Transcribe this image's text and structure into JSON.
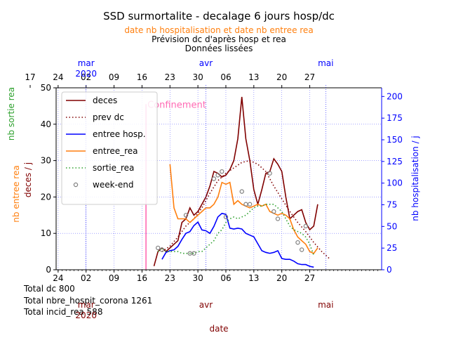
{
  "chart_data": {
    "type": "line",
    "title": "SSD surmortalite -  decalage 6 jours hosp/dc",
    "subtitle_orange": "date nb hospitalisation et date nb entree rea",
    "subtitle_lines": [
      "Prévision dc d'après hosp et rea",
      "Données lissées"
    ],
    "confinement_label": "Confinement",
    "xlabel": "date",
    "ylabel_left_main": "deces / j",
    "ylabel_left_orange": "nb entree rea",
    "ylabel_left_green": "nb sortie rea",
    "ylabel_right": "nb hospitalisation / j",
    "ylim_left": [
      0,
      50
    ],
    "ylim_right": [
      0,
      210
    ],
    "xlim": [
      -6.5,
      75
    ],
    "confinement_day": 16,
    "bottom_ticks": [
      "24",
      "02",
      "09",
      "16",
      "23",
      "30",
      "06",
      "13",
      "20",
      "27"
    ],
    "bottom_tick_days": [
      -6,
      1,
      8,
      15,
      22,
      29,
      36,
      43,
      50,
      57
    ],
    "bottom_months": [
      {
        "label": "mar\n2020",
        "day": 1
      },
      {
        "label": "avr",
        "day": 31
      },
      {
        "label": "mai",
        "day": 61
      }
    ],
    "top_ticks": [
      "17",
      "24",
      "02",
      "09",
      "16",
      "23",
      "30",
      "06",
      "13",
      "20",
      "27"
    ],
    "top_tick_days": [
      -13,
      -6,
      1,
      8,
      15,
      22,
      29,
      36,
      43,
      50,
      57
    ],
    "top_months": [
      {
        "label": "mar\n2020",
        "day": 1
      },
      {
        "label": "avr",
        "day": 31
      },
      {
        "label": "mai",
        "day": 61
      }
    ],
    "left_ticks": [
      0,
      10,
      20,
      30,
      40,
      50
    ],
    "right_ticks": [
      0,
      25,
      50,
      75,
      100,
      125,
      150,
      175,
      200
    ],
    "colors": {
      "deces": "#800000",
      "prev_dc": "#800000",
      "entree_hosp": "#0000ff",
      "entree_rea": "#ff7f0e",
      "sortie_rea": "#2ca02c",
      "weekend": "#808080",
      "confinement": "#ff69b4",
      "grid": "#6b6bff"
    },
    "legend_position": "top-left",
    "legend": [
      "deces",
      "prev dc",
      "entree hosp.",
      "entree_rea",
      "sortie_rea",
      "week-end"
    ],
    "series": [
      {
        "name": "deces",
        "axis": "left",
        "style": "solid",
        "x": [
          18,
          19,
          20,
          21,
          22,
          23,
          24,
          25,
          26,
          27,
          28,
          29,
          30,
          31,
          32,
          33,
          34,
          35,
          36,
          37,
          38,
          39,
          40,
          41,
          42,
          43,
          44,
          45,
          46,
          47,
          48,
          49,
          50,
          51,
          52,
          53,
          54,
          55,
          56,
          57,
          58,
          59
        ],
        "y": [
          1,
          5,
          6,
          5,
          6,
          7,
          8,
          13,
          14,
          17,
          15,
          16,
          18,
          20,
          23,
          27,
          26.5,
          25.5,
          26,
          27.5,
          30,
          36,
          47.5,
          36,
          30,
          22,
          18,
          22,
          26.5,
          27,
          30.5,
          29,
          27,
          20,
          14,
          15,
          16,
          16.5,
          13,
          11,
          12,
          18
        ]
      },
      {
        "name": "prev dc",
        "axis": "left",
        "style": "dotted",
        "x": [
          20,
          22,
          24,
          26,
          28,
          30,
          32,
          34,
          36,
          38,
          40,
          42,
          44,
          46,
          48,
          50,
          52,
          54,
          56,
          58,
          60,
          62
        ],
        "y": [
          5,
          6.5,
          9,
          12,
          14,
          17,
          21,
          24.5,
          26.5,
          28,
          29.5,
          30,
          29,
          27,
          23,
          19.5,
          16,
          13,
          10.5,
          7.5,
          5,
          3
        ]
      },
      {
        "name": "entree hosp.",
        "axis": "right",
        "x": [
          20,
          21,
          22,
          23,
          24,
          25,
          26,
          27,
          28,
          29,
          30,
          31,
          32,
          33,
          34,
          35,
          36,
          37,
          38,
          39,
          40,
          41,
          42,
          43,
          44,
          45,
          46,
          47,
          48,
          49,
          50,
          51,
          52,
          53,
          54,
          55,
          56,
          57,
          58
        ],
        "y": [
          12,
          20,
          22,
          23,
          27,
          35,
          42,
          44,
          51,
          55,
          46,
          45,
          42,
          50,
          61,
          65,
          64,
          48,
          47,
          48,
          47,
          42,
          40,
          38,
          30,
          22,
          20,
          19,
          20,
          22,
          13,
          12,
          12,
          10,
          7,
          6,
          6,
          4,
          3
        ]
      },
      {
        "name": "entree_rea",
        "axis": "left",
        "x": [
          22,
          23,
          24,
          25,
          26,
          27,
          28,
          29,
          30,
          31,
          32,
          33,
          34,
          35,
          36,
          37,
          38,
          39,
          40,
          41,
          42,
          43,
          44,
          45,
          46,
          47,
          48,
          49,
          50,
          51,
          52,
          53,
          54,
          55,
          56,
          57,
          58,
          59
        ],
        "y": [
          29,
          17,
          14,
          14,
          14,
          13,
          14,
          15,
          16,
          17,
          17,
          18,
          20,
          24,
          23.5,
          24,
          18,
          19,
          18,
          17.5,
          17,
          17.5,
          18,
          17.5,
          18,
          16,
          15.5,
          15,
          15.5,
          15,
          14,
          11,
          9,
          8,
          7,
          5,
          4.5,
          6
        ]
      },
      {
        "name": "sortie_rea",
        "axis": "left",
        "style": "dotted",
        "x": [
          19,
          20,
          21,
          22,
          23,
          24,
          25,
          26,
          27,
          28,
          29,
          30,
          31,
          32,
          33,
          34,
          35,
          36,
          37,
          38,
          39,
          40,
          41,
          42,
          43,
          44,
          45,
          46,
          47,
          48,
          49,
          50,
          51,
          52,
          53,
          54,
          55,
          56,
          57,
          58
        ],
        "y": [
          5,
          6,
          5,
          5,
          5,
          5,
          4.5,
          4.5,
          4.5,
          4.5,
          5,
          5,
          6,
          7,
          8,
          10,
          11,
          13,
          14,
          14.5,
          14,
          14.5,
          15,
          16,
          17,
          17.5,
          17.5,
          18,
          18,
          18,
          17,
          16,
          14,
          12,
          11,
          10.5,
          10,
          9,
          7,
          4
        ]
      },
      {
        "name": "week-end",
        "axis": "marker",
        "points": [
          [
            19,
            6
          ],
          [
            20,
            5.5
          ],
          [
            26,
            15
          ],
          [
            27,
            4.5
          ],
          [
            28,
            4.5
          ],
          [
            33,
            25
          ],
          [
            34,
            26
          ],
          [
            35,
            27
          ],
          [
            36,
            14.5
          ],
          [
            40,
            21.5
          ],
          [
            41,
            18
          ],
          [
            42,
            18
          ],
          [
            47,
            26.5
          ],
          [
            48,
            16
          ],
          [
            49,
            14
          ],
          [
            54,
            7.5
          ],
          [
            55,
            5.5
          ],
          [
            56,
            12
          ]
        ]
      }
    ],
    "totals": [
      "Total dc 800",
      "Total nbre_hospit_corona 1261",
      "Total incid_rea 588"
    ]
  }
}
